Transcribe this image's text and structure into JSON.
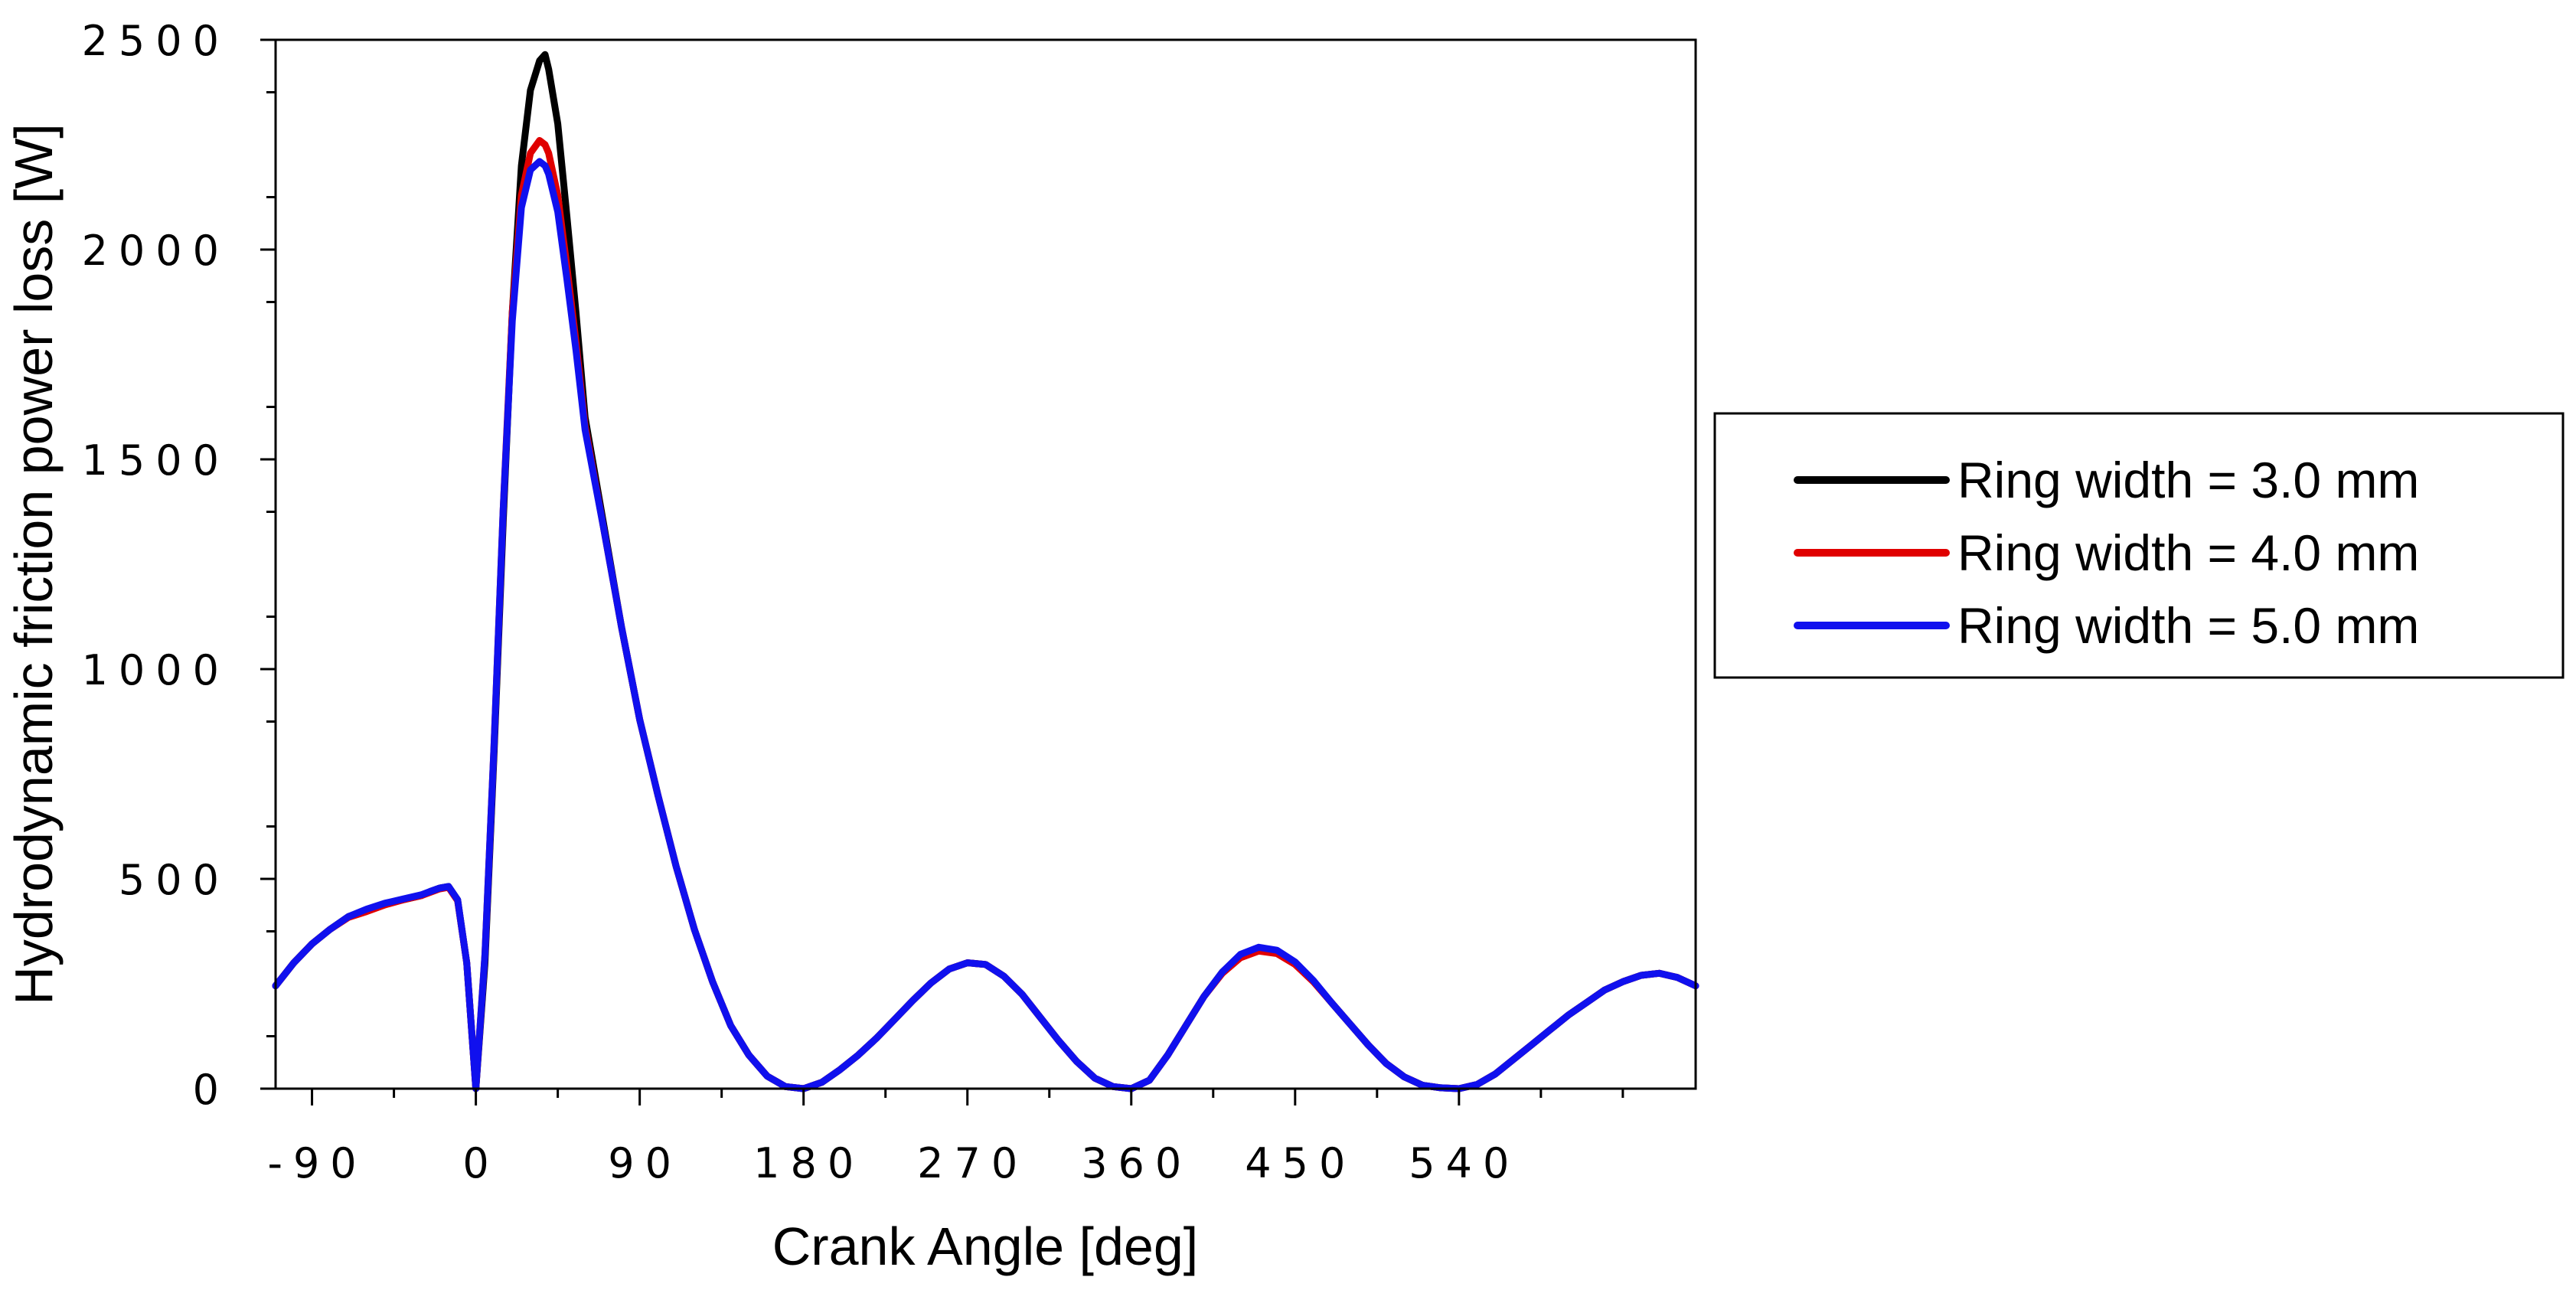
{
  "chart_data": {
    "type": "line",
    "xlabel": "Crank Angle [deg]",
    "ylabel": "Hydrodynamic friction power loss [W]",
    "xlim": [
      -110,
      670
    ],
    "ylim": [
      0,
      2500
    ],
    "x_ticks": [
      -90,
      0,
      90,
      180,
      270,
      360,
      450,
      540
    ],
    "x_tick_labels": [
      "-90",
      "0",
      "90",
      "180",
      "270",
      "360",
      "450",
      "540"
    ],
    "y_ticks": [
      0,
      500,
      1000,
      1500,
      2000,
      2500
    ],
    "y_tick_labels": [
      "0",
      "500",
      "1000",
      "1500",
      "2000",
      "2500"
    ],
    "grid": false,
    "legend_position": "right",
    "series": [
      {
        "name": "Ring width = 3.0 mm",
        "color": "#000000",
        "x": [
          -110,
          -100,
          -90,
          -80,
          -70,
          -60,
          -50,
          -40,
          -30,
          -25,
          -20,
          -15,
          -10,
          -5,
          0,
          5,
          10,
          15,
          20,
          25,
          30,
          35,
          38,
          40,
          45,
          50,
          55,
          60,
          70,
          80,
          90,
          100,
          110,
          120,
          130,
          140,
          150,
          160,
          170,
          180,
          190,
          200,
          210,
          220,
          230,
          240,
          250,
          260,
          270,
          280,
          290,
          300,
          310,
          320,
          330,
          340,
          350,
          360,
          370,
          380,
          390,
          400,
          410,
          420,
          430,
          440,
          450,
          460,
          470,
          480,
          490,
          500,
          510,
          520,
          530,
          540,
          550,
          560,
          570,
          580,
          590,
          600,
          610,
          620,
          630,
          640,
          650,
          660,
          670
        ],
        "y": [
          245,
          300,
          345,
          380,
          410,
          425,
          440,
          450,
          460,
          470,
          478,
          482,
          450,
          300,
          0,
          300,
          800,
          1350,
          1850,
          2200,
          2380,
          2450,
          2465,
          2430,
          2300,
          2080,
          1850,
          1600,
          1350,
          1100,
          880,
          700,
          530,
          380,
          255,
          150,
          80,
          30,
          5,
          0,
          15,
          45,
          80,
          120,
          165,
          210,
          252,
          285,
          300,
          296,
          268,
          225,
          170,
          115,
          65,
          25,
          5,
          0,
          20,
          80,
          150,
          220,
          278,
          318,
          335,
          328,
          300,
          257,
          205,
          155,
          105,
          60,
          28,
          8,
          2,
          0,
          10,
          35,
          70,
          105,
          140,
          175,
          205,
          235,
          255,
          270,
          275,
          265,
          245
        ]
      },
      {
        "name": "Ring width = 4.0 mm",
        "color": "#e00000",
        "x": [
          -110,
          -100,
          -90,
          -80,
          -70,
          -60,
          -50,
          -40,
          -30,
          -25,
          -20,
          -15,
          -10,
          -5,
          0,
          5,
          10,
          15,
          20,
          25,
          30,
          35,
          38,
          40,
          45,
          50,
          55,
          60,
          70,
          80,
          90,
          100,
          110,
          120,
          130,
          140,
          150,
          160,
          170,
          180,
          190,
          200,
          210,
          220,
          230,
          240,
          250,
          260,
          270,
          280,
          290,
          300,
          310,
          320,
          330,
          340,
          350,
          360,
          370,
          380,
          390,
          400,
          410,
          420,
          430,
          440,
          450,
          460,
          470,
          480,
          490,
          500,
          510,
          520,
          530,
          540,
          550,
          560,
          570,
          580,
          590,
          600,
          610,
          620,
          630,
          640,
          650,
          660,
          670
        ],
        "y": [
          245,
          300,
          345,
          380,
          408,
          422,
          438,
          450,
          460,
          468,
          476,
          480,
          448,
          300,
          0,
          320,
          820,
          1380,
          1850,
          2130,
          2230,
          2260,
          2250,
          2230,
          2130,
          1960,
          1780,
          1580,
          1340,
          1100,
          880,
          700,
          530,
          380,
          255,
          150,
          80,
          30,
          5,
          0,
          15,
          45,
          80,
          120,
          165,
          210,
          252,
          285,
          300,
          296,
          268,
          225,
          170,
          115,
          65,
          25,
          5,
          0,
          20,
          80,
          150,
          220,
          275,
          312,
          328,
          322,
          296,
          255,
          205,
          155,
          105,
          60,
          28,
          8,
          2,
          0,
          10,
          35,
          70,
          105,
          140,
          175,
          205,
          235,
          255,
          270,
          275,
          265,
          245
        ]
      },
      {
        "name": "Ring width = 5.0 mm",
        "color": "#1010ee",
        "x": [
          -110,
          -100,
          -90,
          -80,
          -70,
          -60,
          -50,
          -40,
          -30,
          -25,
          -20,
          -15,
          -10,
          -5,
          0,
          5,
          10,
          15,
          20,
          25,
          30,
          35,
          38,
          40,
          45,
          50,
          55,
          60,
          70,
          80,
          90,
          100,
          110,
          120,
          130,
          140,
          150,
          160,
          170,
          180,
          190,
          200,
          210,
          220,
          230,
          240,
          250,
          260,
          270,
          280,
          290,
          300,
          310,
          320,
          330,
          340,
          350,
          360,
          370,
          380,
          390,
          400,
          410,
          420,
          430,
          440,
          450,
          460,
          470,
          480,
          490,
          500,
          510,
          520,
          530,
          540,
          550,
          560,
          570,
          580,
          590,
          600,
          610,
          620,
          630,
          640,
          650,
          660,
          670
        ],
        "y": [
          245,
          300,
          345,
          380,
          410,
          428,
          442,
          452,
          462,
          470,
          478,
          482,
          450,
          300,
          0,
          320,
          820,
          1380,
          1830,
          2100,
          2190,
          2210,
          2200,
          2180,
          2090,
          1930,
          1760,
          1570,
          1340,
          1100,
          880,
          700,
          530,
          380,
          255,
          150,
          80,
          30,
          5,
          0,
          15,
          45,
          80,
          120,
          165,
          210,
          252,
          285,
          300,
          296,
          268,
          225,
          170,
          115,
          65,
          25,
          5,
          0,
          20,
          80,
          150,
          220,
          278,
          320,
          337,
          330,
          302,
          258,
          205,
          155,
          105,
          60,
          28,
          8,
          2,
          0,
          10,
          35,
          70,
          105,
          140,
          175,
          205,
          235,
          255,
          270,
          275,
          265,
          245
        ]
      }
    ]
  }
}
